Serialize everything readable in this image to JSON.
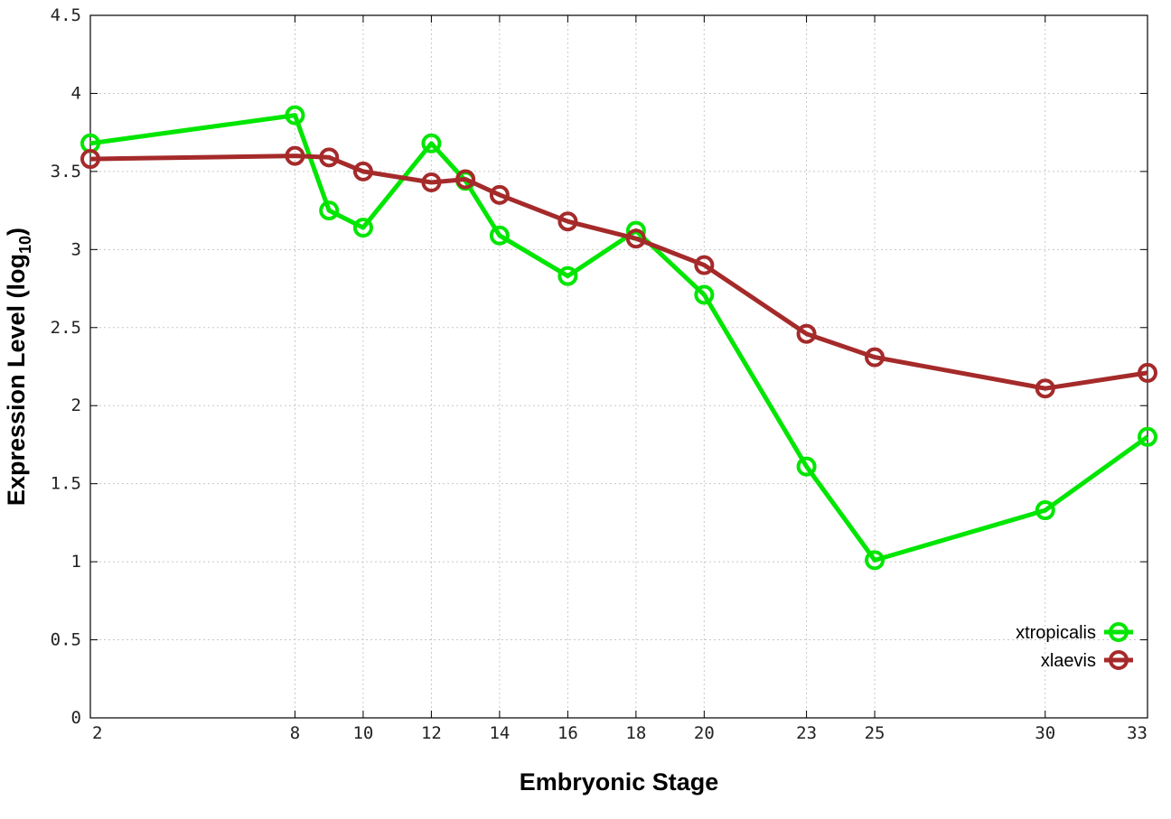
{
  "chart_data": {
    "type": "line",
    "title": "",
    "xlabel": "Embryonic Stage",
    "ylabel_main": "Expression Level (log",
    "ylabel_sub": "10",
    "ylabel_close": ")",
    "x_ticks": [
      "2",
      "8",
      "10",
      "12",
      "14",
      "16",
      "18",
      "20",
      "23",
      "25",
      "30",
      "33"
    ],
    "y_ticks": [
      "0",
      "0.5",
      "1",
      "1.5",
      "2",
      "2.5",
      "3",
      "3.5",
      "4",
      "4.5"
    ],
    "ylim": [
      0,
      4.5
    ],
    "grid": true,
    "legend_position": "bottom-right",
    "series": [
      {
        "name": "xtropicalis",
        "color": "#00e600",
        "x": [
          2,
          8,
          9,
          10,
          12,
          13,
          14,
          16,
          18,
          20,
          23,
          25,
          30,
          33
        ],
        "y": [
          3.68,
          3.86,
          3.25,
          3.14,
          3.68,
          3.44,
          3.09,
          2.83,
          3.12,
          2.71,
          1.61,
          1.01,
          1.33,
          1.8
        ]
      },
      {
        "name": "xlaevis",
        "color": "#a52a2a",
        "x": [
          2,
          8,
          9,
          10,
          12,
          13,
          14,
          16,
          18,
          20,
          23,
          25,
          30,
          33
        ],
        "y": [
          3.58,
          3.6,
          3.59,
          3.5,
          3.43,
          3.45,
          3.35,
          3.18,
          3.07,
          2.9,
          2.46,
          2.31,
          2.11,
          2.21
        ]
      }
    ]
  }
}
